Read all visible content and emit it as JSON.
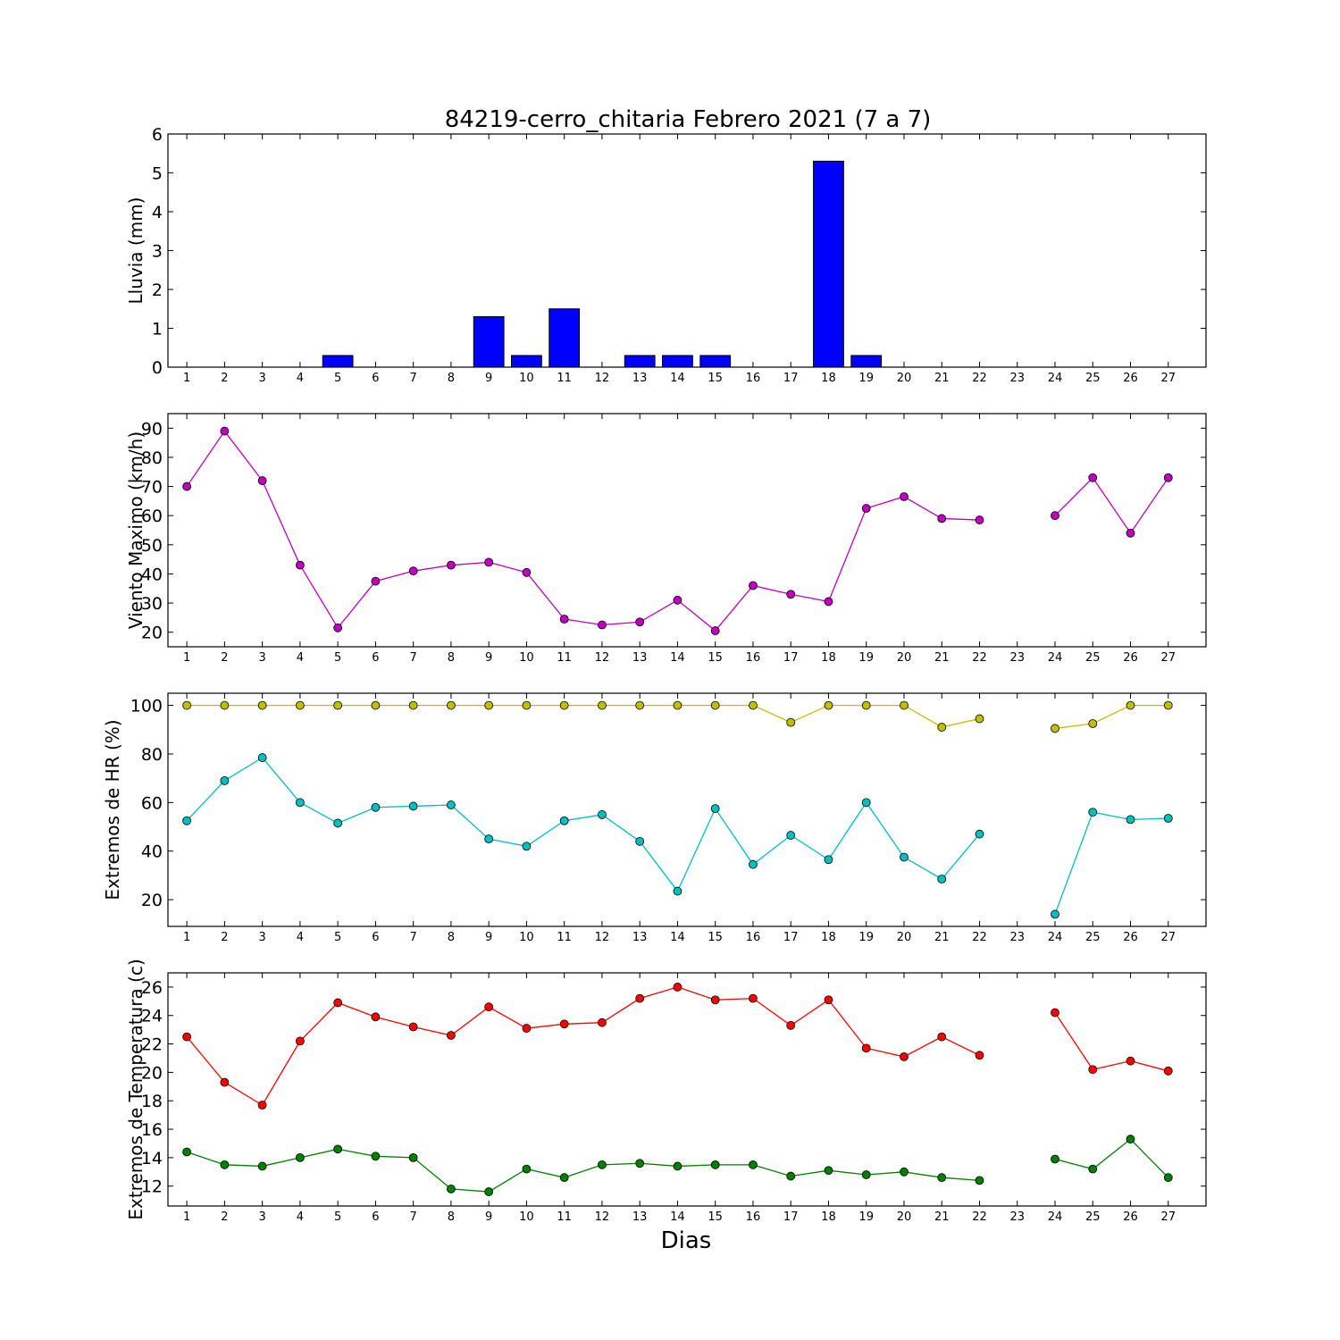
{
  "chart_data": {
    "title": "84219-cerro_chitaria Febrero 2021  (7 a 7)",
    "xlabel": "Dias",
    "x_ticks": [
      1,
      2,
      3,
      4,
      5,
      6,
      7,
      8,
      9,
      10,
      11,
      12,
      13,
      14,
      15,
      16,
      17,
      18,
      19,
      20,
      21,
      22,
      23,
      24,
      25,
      26,
      27
    ],
    "panels": [
      {
        "type": "bar",
        "ylabel": "Lluvia (mm)",
        "ylim": [
          0,
          6
        ],
        "yticks": [
          0,
          1,
          2,
          3,
          4,
          5,
          6
        ],
        "xlim": [
          0.5,
          28
        ],
        "bar_color": "#0000ff",
        "series": [
          {
            "x": [
              1,
              2,
              3,
              4,
              5,
              6,
              7,
              8,
              9,
              10,
              11,
              12,
              13,
              14,
              15,
              16,
              17,
              18,
              19,
              20,
              21,
              22,
              23,
              24,
              25,
              26,
              27
            ],
            "values": [
              0,
              0,
              0,
              0,
              0.3,
              0,
              0,
              0,
              1.3,
              0.3,
              1.5,
              0,
              0.3,
              0.3,
              0.3,
              0,
              0,
              5.3,
              0.3,
              0,
              0,
              0,
              0,
              0,
              0,
              0,
              0
            ]
          }
        ]
      },
      {
        "type": "line",
        "ylabel": "Viento Maximo (km/h)",
        "ylim": [
          15,
          95
        ],
        "yticks": [
          20,
          30,
          40,
          50,
          60,
          70,
          80,
          90
        ],
        "xlim": [
          0.5,
          28
        ],
        "series": [
          {
            "color": "#bf00bf",
            "x": [
              1,
              2,
              3,
              4,
              5,
              6,
              7,
              8,
              9,
              10,
              11,
              12,
              13,
              14,
              15,
              16,
              17,
              18,
              19,
              20,
              21,
              22,
              23,
              24,
              25,
              26,
              27
            ],
            "values": [
              70,
              89,
              72,
              43,
              21.5,
              37.5,
              41,
              43,
              44,
              40.5,
              24.5,
              22.5,
              23.5,
              31,
              20.5,
              36,
              33,
              30.5,
              62.5,
              66.5,
              59,
              58.5,
              null,
              60,
              73,
              54,
              73
            ]
          }
        ]
      },
      {
        "type": "line",
        "ylabel": "Extremos de HR (%)",
        "ylim": [
          9,
          105
        ],
        "yticks": [
          20,
          40,
          60,
          80,
          100
        ],
        "xlim": [
          0.5,
          28
        ],
        "series": [
          {
            "color": "#bfbf00",
            "x": [
              1,
              2,
              3,
              4,
              5,
              6,
              7,
              8,
              9,
              10,
              11,
              12,
              13,
              14,
              15,
              16,
              17,
              18,
              19,
              20,
              21,
              22,
              23,
              24,
              25,
              26,
              27
            ],
            "values": [
              100,
              100,
              100,
              100,
              100,
              100,
              100,
              100,
              100,
              100,
              100,
              100,
              100,
              100,
              100,
              100,
              93,
              100,
              100,
              100,
              91,
              94.5,
              null,
              90.5,
              92.5,
              100,
              100
            ]
          },
          {
            "color": "#00bfbf",
            "x": [
              1,
              2,
              3,
              4,
              5,
              6,
              7,
              8,
              9,
              10,
              11,
              12,
              13,
              14,
              15,
              16,
              17,
              18,
              19,
              20,
              21,
              22,
              23,
              24,
              25,
              26,
              27
            ],
            "values": [
              52.5,
              69,
              78.5,
              60,
              51.5,
              58,
              58.5,
              59,
              45,
              42,
              52.5,
              55,
              44,
              23.5,
              57.5,
              34.5,
              46.5,
              36.5,
              60,
              37.5,
              28.5,
              47,
              null,
              14,
              56,
              53,
              53.5
            ]
          }
        ]
      },
      {
        "type": "line",
        "ylabel": "Extremos de Temperatura (c)",
        "ylim": [
          10.6,
          27
        ],
        "yticks": [
          12,
          14,
          16,
          18,
          20,
          22,
          24,
          26
        ],
        "xlim": [
          0.5,
          28
        ],
        "series": [
          {
            "color": "#ff0000",
            "x": [
              1,
              2,
              3,
              4,
              5,
              6,
              7,
              8,
              9,
              10,
              11,
              12,
              13,
              14,
              15,
              16,
              17,
              18,
              19,
              20,
              21,
              22,
              23,
              24,
              25,
              26,
              27
            ],
            "values": [
              22.5,
              19.3,
              17.7,
              22.2,
              24.9,
              23.9,
              23.2,
              22.6,
              24.6,
              23.1,
              23.4,
              23.5,
              25.2,
              26,
              25.1,
              25.2,
              23.3,
              25.1,
              21.7,
              21.1,
              22.5,
              21.2,
              null,
              24.2,
              20.2,
              20.8,
              20.1
            ]
          },
          {
            "color": "#007f00",
            "x": [
              1,
              2,
              3,
              4,
              5,
              6,
              7,
              8,
              9,
              10,
              11,
              12,
              13,
              14,
              15,
              16,
              17,
              18,
              19,
              20,
              21,
              22,
              23,
              24,
              25,
              26,
              27
            ],
            "values": [
              14.4,
              13.5,
              13.4,
              14,
              14.6,
              14.1,
              14,
              11.8,
              11.6,
              13.2,
              12.6,
              13.5,
              13.6,
              13.4,
              13.5,
              13.5,
              12.7,
              13.1,
              12.8,
              13,
              12.6,
              12.4,
              null,
              13.9,
              13.2,
              15.3,
              12.6
            ]
          }
        ]
      }
    ]
  }
}
